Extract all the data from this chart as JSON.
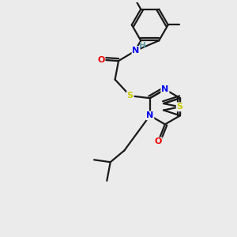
{
  "background_color": "#ebebeb",
  "bond_color": "#1a1a1a",
  "atom_colors": {
    "N": "#0000ee",
    "O": "#ee0000",
    "S": "#cccc00",
    "H": "#5f9ea0",
    "C": "#1a1a1a"
  },
  "figsize": [
    3.0,
    3.0
  ],
  "dpi": 100
}
